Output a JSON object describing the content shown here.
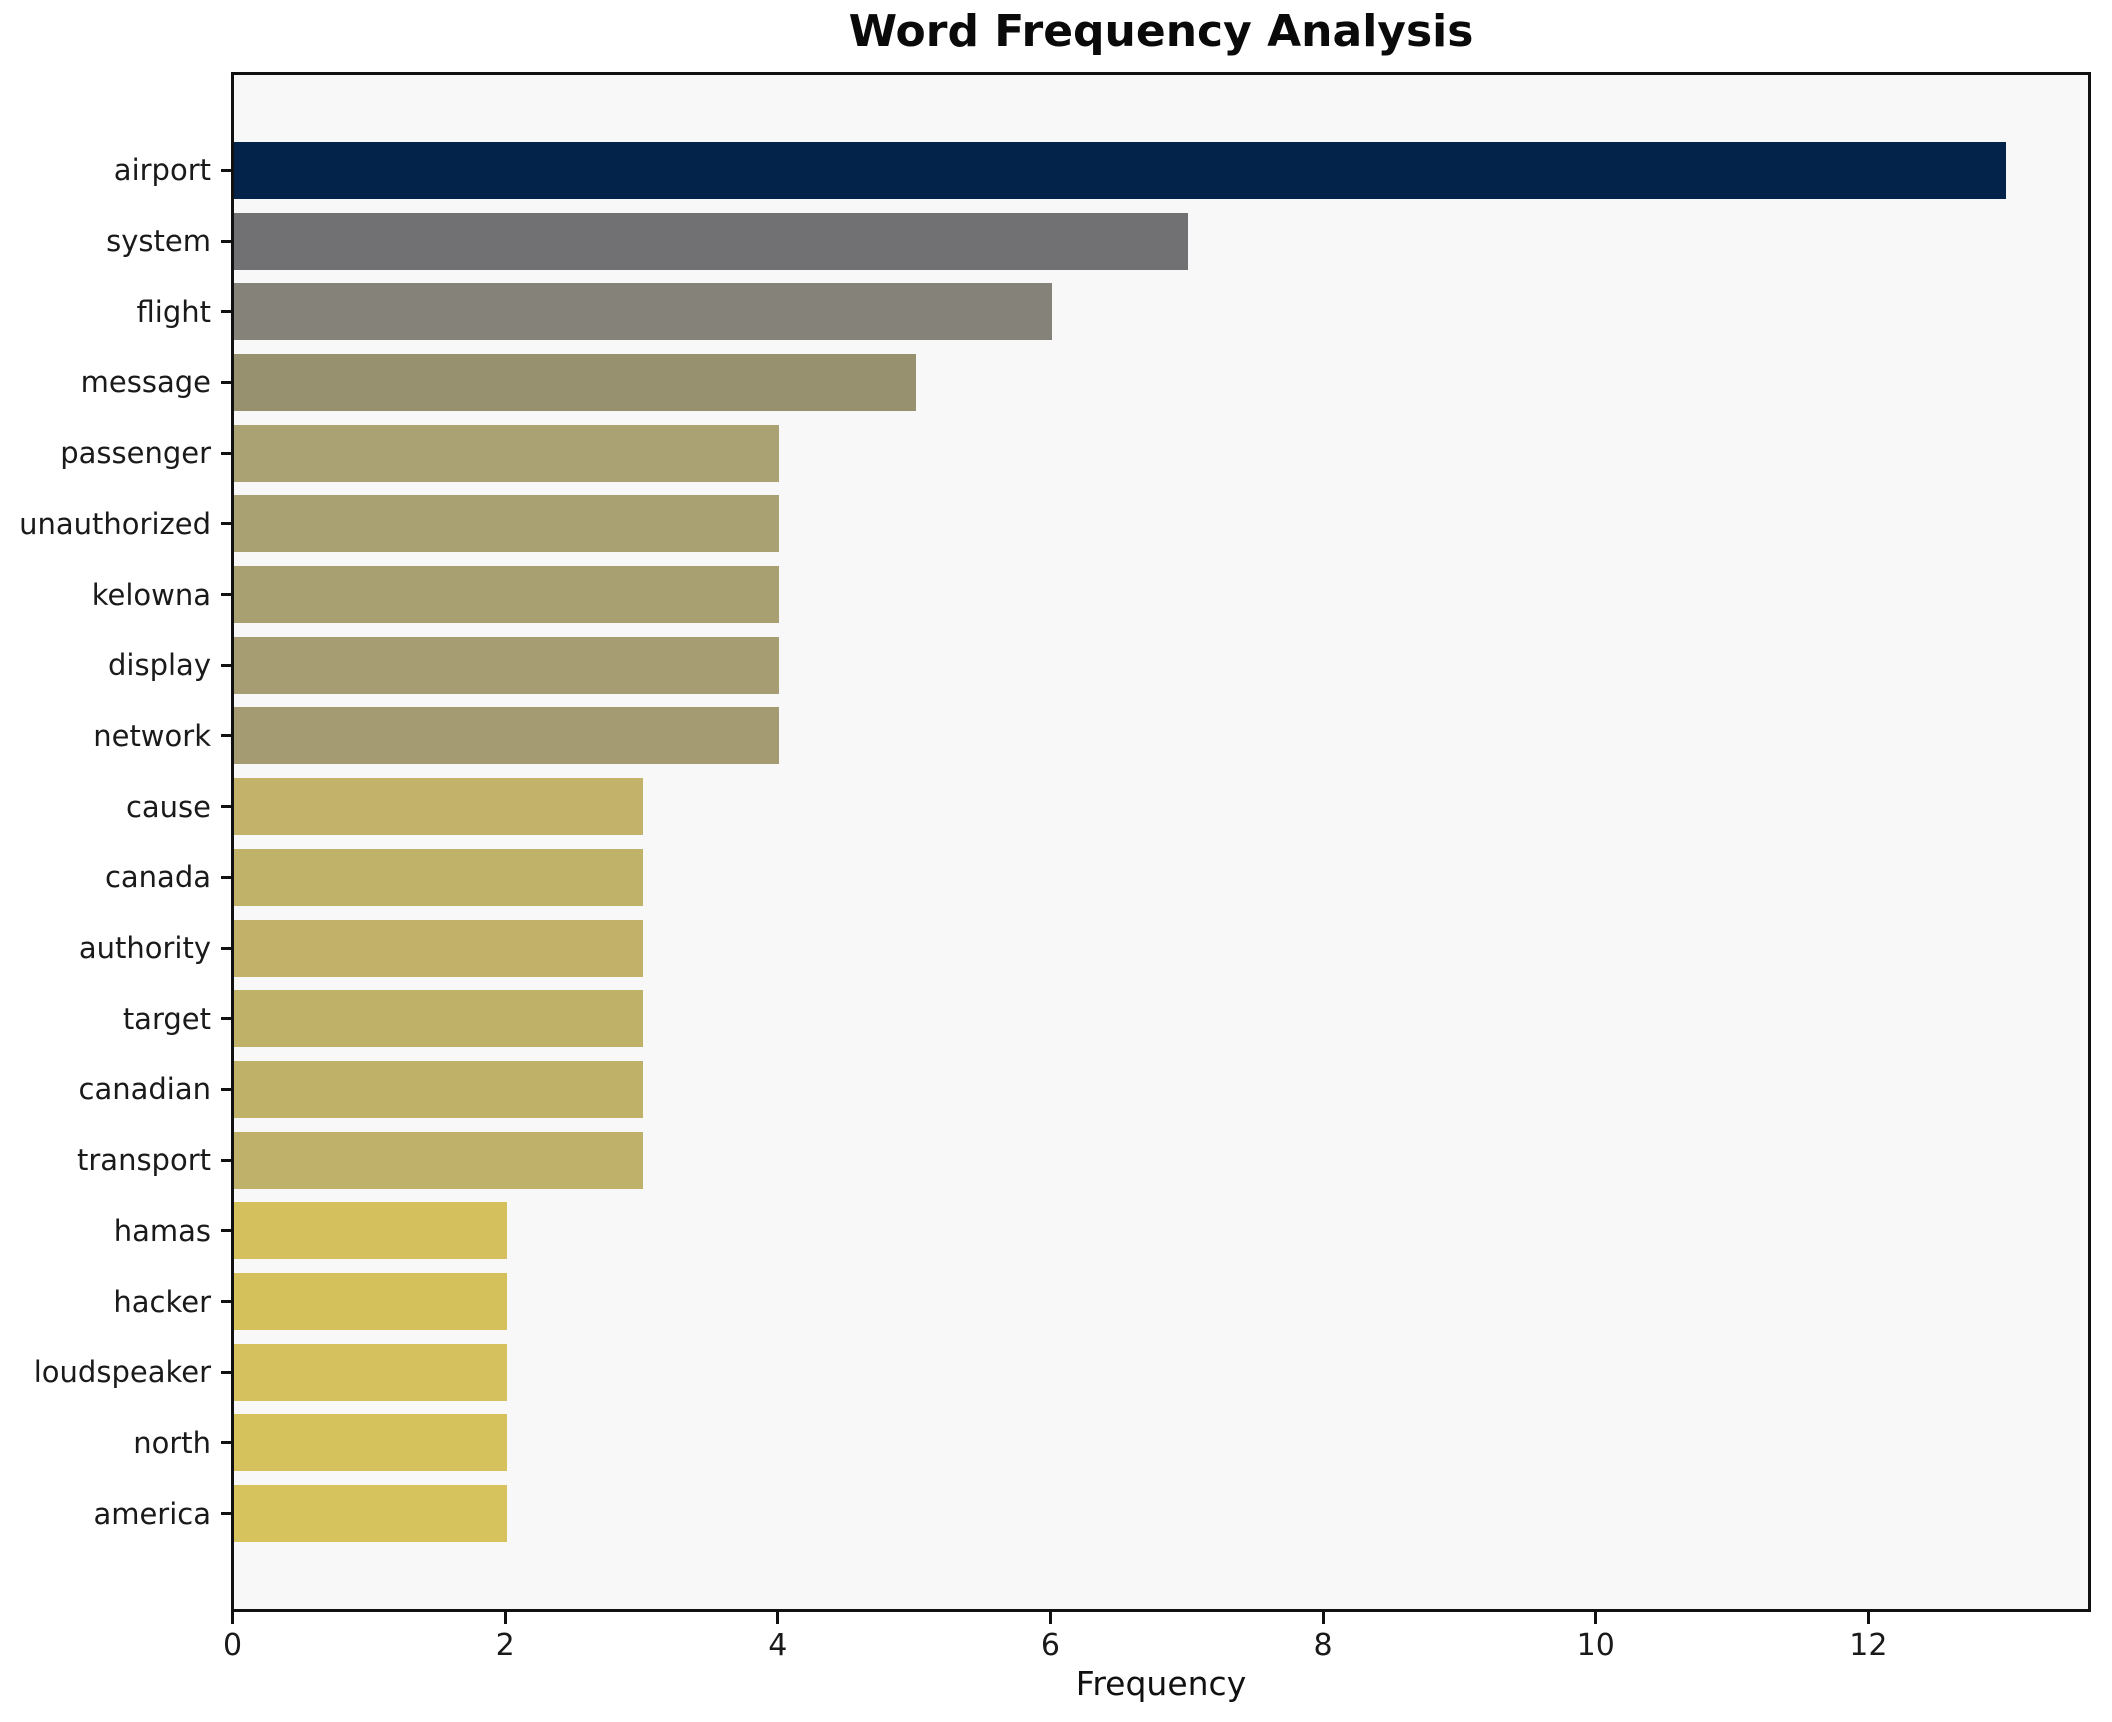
{
  "title": "Word Frequency Analysis",
  "xlabel": "Frequency",
  "colors": {
    "figure_bg": "#ffffff",
    "plot_bg": "#f7f8f7",
    "spine": "#111111",
    "tick_label": "#1a1a1a",
    "title_color": "#0a0a0a"
  },
  "chart_data": {
    "type": "bar",
    "orientation": "horizontal",
    "title": "Word Frequency Analysis",
    "xlabel": "Frequency",
    "ylabel": "",
    "grid": false,
    "legend": false,
    "xlim": [
      0,
      13.6
    ],
    "xticks": [
      0,
      2,
      4,
      6,
      8,
      10,
      12
    ],
    "categories": [
      "airport",
      "system",
      "flight",
      "message",
      "passenger",
      "unauthorized",
      "kelowna",
      "display",
      "network",
      "cause",
      "canada",
      "authority",
      "target",
      "canadian",
      "transport",
      "hamas",
      "hacker",
      "loudspeaker",
      "north",
      "america"
    ],
    "values": [
      13,
      7,
      6,
      5,
      4,
      4,
      4,
      4,
      4,
      3,
      3,
      3,
      3,
      3,
      3,
      2,
      2,
      2,
      2,
      2
    ],
    "bar_colors": [
      "#04234b",
      "#717174",
      "#85827a",
      "#97916f",
      "#aba273",
      "#a9a172",
      "#a8a071",
      "#a69e72",
      "#a49b72",
      "#c2b26a",
      "#c1b26a",
      "#c1b169",
      "#c0b169",
      "#c0b169",
      "#bfb169",
      "#d4c05c",
      "#d4c15c",
      "#d5c15d",
      "#d5c25d",
      "#d6c35e"
    ]
  }
}
